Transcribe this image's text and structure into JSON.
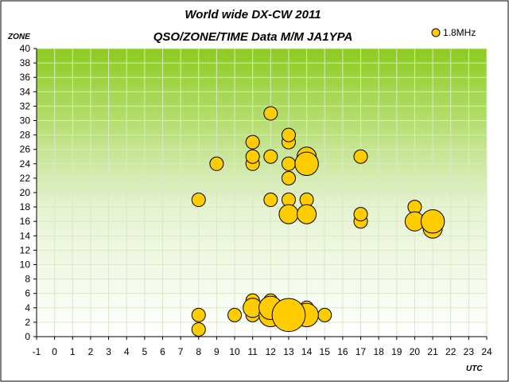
{
  "chart_data": {
    "type": "scatter",
    "title": "World wide DX-CW 2011",
    "subtitle": "QSO/ZONE/TIME Data M/M JA1YPA",
    "xlabel": "UTC",
    "ylabel": "ZONE",
    "xlim": [
      -1,
      24
    ],
    "ylim": [
      0,
      40
    ],
    "xticks": [
      -1,
      0,
      1,
      2,
      3,
      4,
      5,
      6,
      7,
      8,
      9,
      10,
      11,
      12,
      13,
      14,
      15,
      16,
      17,
      18,
      19,
      20,
      21,
      22,
      23,
      24
    ],
    "yticks": [
      0,
      2,
      4,
      6,
      8,
      10,
      12,
      14,
      16,
      18,
      20,
      22,
      24,
      26,
      28,
      30,
      32,
      34,
      36,
      38,
      40
    ],
    "grid": true,
    "legend_position": "top-right",
    "colors": {
      "bubble_fill": "#FFCC00",
      "bubble_stroke": "#000000",
      "plot_top": "#8CCB1F",
      "plot_bottom": "#FFFFFF",
      "grid": "#D9E8C8"
    },
    "series": [
      {
        "name": "1.8MHz",
        "points": [
          {
            "x": 8,
            "y": 1,
            "size": 1
          },
          {
            "x": 8,
            "y": 3,
            "size": 1
          },
          {
            "x": 8,
            "y": 19,
            "size": 1
          },
          {
            "x": 9,
            "y": 24,
            "size": 1
          },
          {
            "x": 10,
            "y": 3,
            "size": 1
          },
          {
            "x": 11,
            "y": 3,
            "size": 1
          },
          {
            "x": 11,
            "y": 4,
            "size": 2
          },
          {
            "x": 11,
            "y": 5,
            "size": 1
          },
          {
            "x": 11,
            "y": 24,
            "size": 1
          },
          {
            "x": 11,
            "y": 25,
            "size": 1
          },
          {
            "x": 11,
            "y": 27,
            "size": 1
          },
          {
            "x": 12,
            "y": 3,
            "size": 3
          },
          {
            "x": 12,
            "y": 4,
            "size": 3
          },
          {
            "x": 12,
            "y": 5,
            "size": 1
          },
          {
            "x": 12,
            "y": 19,
            "size": 1
          },
          {
            "x": 12,
            "y": 25,
            "size": 1
          },
          {
            "x": 12,
            "y": 31,
            "size": 1
          },
          {
            "x": 13,
            "y": 3,
            "size": 6
          },
          {
            "x": 13,
            "y": 17,
            "size": 2
          },
          {
            "x": 13,
            "y": 19,
            "size": 1
          },
          {
            "x": 13,
            "y": 22,
            "size": 1
          },
          {
            "x": 13,
            "y": 24,
            "size": 1
          },
          {
            "x": 13,
            "y": 27,
            "size": 1
          },
          {
            "x": 13,
            "y": 28,
            "size": 1
          },
          {
            "x": 14,
            "y": 3,
            "size": 3
          },
          {
            "x": 14,
            "y": 4,
            "size": 1
          },
          {
            "x": 14,
            "y": 17,
            "size": 2
          },
          {
            "x": 14,
            "y": 19,
            "size": 1
          },
          {
            "x": 14,
            "y": 24,
            "size": 3
          },
          {
            "x": 14,
            "y": 25,
            "size": 2
          },
          {
            "x": 15,
            "y": 3,
            "size": 1
          },
          {
            "x": 17,
            "y": 16,
            "size": 1
          },
          {
            "x": 17,
            "y": 17,
            "size": 1
          },
          {
            "x": 17,
            "y": 25,
            "size": 1
          },
          {
            "x": 20,
            "y": 16,
            "size": 2
          },
          {
            "x": 20,
            "y": 18,
            "size": 1
          },
          {
            "x": 21,
            "y": 15,
            "size": 2
          },
          {
            "x": 21,
            "y": 16,
            "size": 3
          }
        ]
      }
    ]
  }
}
